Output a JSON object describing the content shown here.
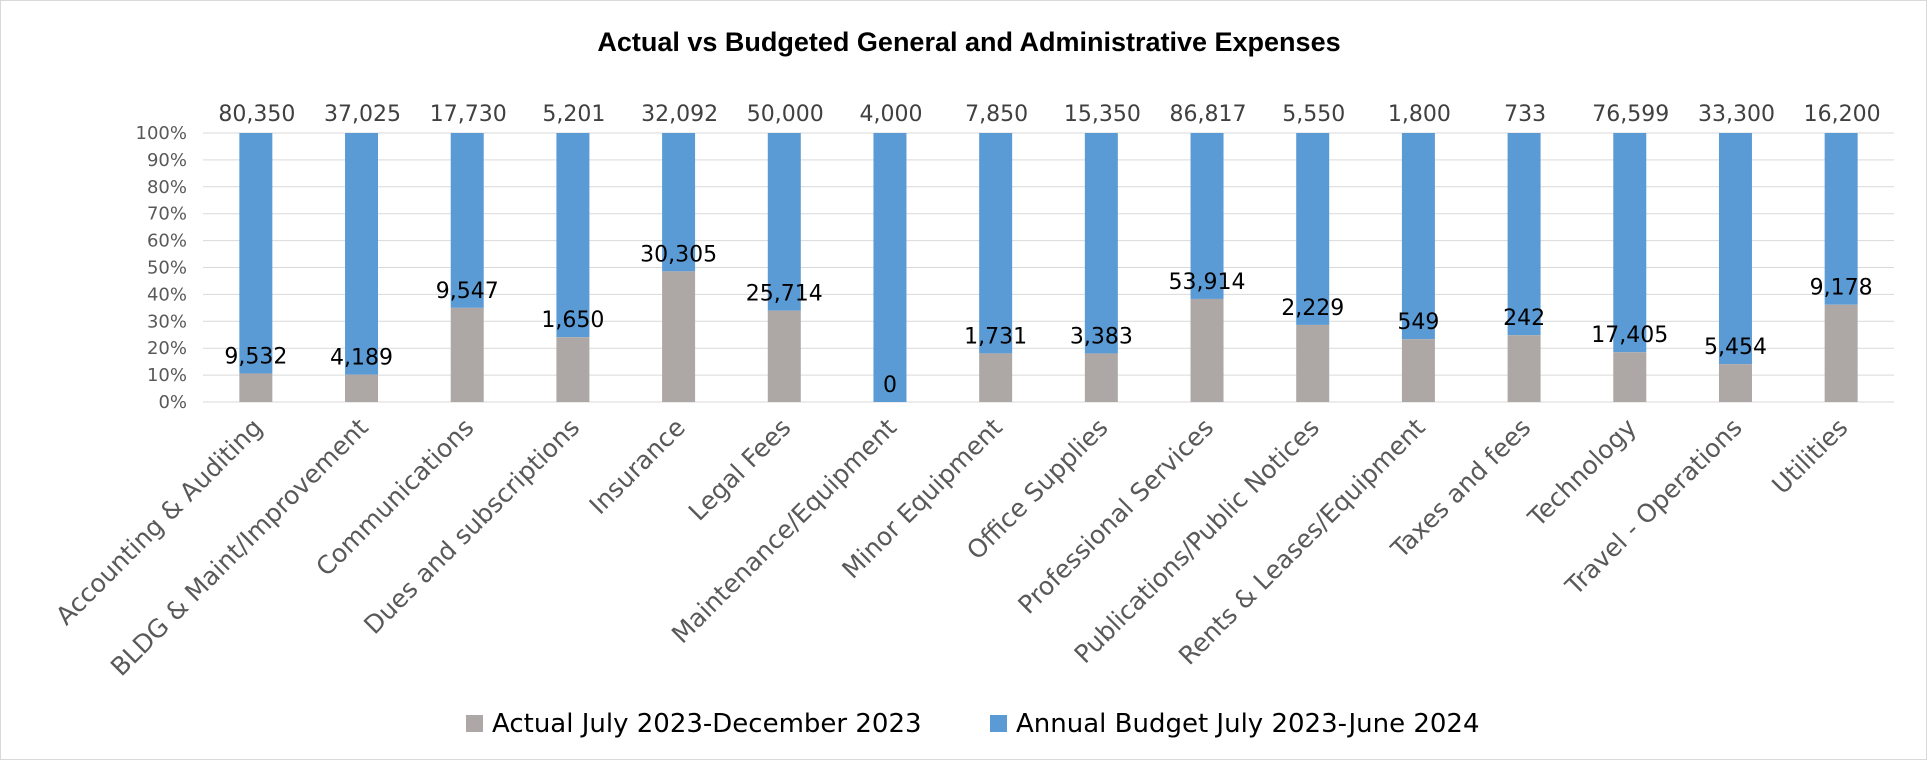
{
  "chart_data": {
    "type": "bar",
    "stacking": "percent",
    "title": "Actual vs Budgeted General and Administrative Expenses",
    "categories": [
      "Accounting & Auditing",
      "BLDG & Maint/Improvement",
      "Communications",
      "Dues and subscriptions",
      "Insurance",
      "Legal Fees",
      "Maintenance/Equipment",
      "Minor Equipment",
      "Office Supplies",
      "Professional Services",
      "Publications/Public Notices",
      "Rents & Leases/Equipment",
      "Taxes and fees",
      "Technology",
      "Travel - Operations",
      "Utilities"
    ],
    "series": [
      {
        "name": "Actual July 2023-December 2023",
        "color": "#ada8a6",
        "values": [
          9532,
          4189,
          9547,
          1650,
          30305,
          25714,
          0,
          1731,
          3383,
          53914,
          2229,
          549,
          242,
          17405,
          5454,
          9178
        ],
        "labels": [
          "9,532",
          "4,189",
          "9,547",
          "1,650",
          "30,305",
          "25,714",
          "0",
          "1,731",
          "3,383",
          "53,914",
          "2,229",
          "549",
          "242",
          "17,405",
          "5,454",
          "9,178"
        ]
      },
      {
        "name": "Annual Budget July 2023-June 2024",
        "color": "#5b9bd5",
        "values": [
          80350,
          37025,
          17730,
          5201,
          32092,
          50000,
          4000,
          7850,
          15350,
          86817,
          5550,
          1800,
          733,
          76599,
          33300,
          16200
        ],
        "labels": [
          "80,350",
          "37,025",
          "17,730",
          "5,201",
          "32,092",
          "50,000",
          "4,000",
          "7,850",
          "15,350",
          "86,817",
          "5,550",
          "1,800",
          "733",
          "76,599",
          "33,300",
          "16,200"
        ]
      }
    ],
    "y_ticks": [
      "0%",
      "10%",
      "20%",
      "30%",
      "40%",
      "50%",
      "60%",
      "70%",
      "80%",
      "90%",
      "100%"
    ],
    "ylim": [
      0,
      100
    ],
    "grid": true,
    "legend_position": "bottom"
  }
}
